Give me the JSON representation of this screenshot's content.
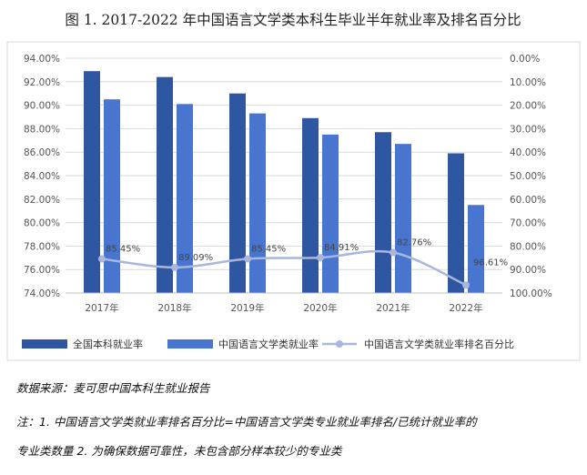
{
  "chart_data": {
    "type": "bar",
    "title": "图 1. 2017-2022 年中国语言文学类本科生毕业半年就业率及排名百分比",
    "categories": [
      "2017年",
      "2018年",
      "2019年",
      "2020年",
      "2021年",
      "2022年"
    ],
    "series": [
      {
        "name": "全国本科就业率",
        "type": "bar",
        "axis": "left",
        "color": "#2f56a0",
        "values": [
          92.9,
          92.4,
          91.0,
          88.9,
          87.7,
          85.9
        ]
      },
      {
        "name": "中国语言文学类就业率",
        "type": "bar",
        "axis": "left",
        "color": "#4775cf",
        "values": [
          90.5,
          90.1,
          89.3,
          87.5,
          86.7,
          81.5
        ]
      },
      {
        "name": "中国语言文学类就业率排名百分比",
        "type": "line",
        "axis": "right",
        "color": "#a9b6dd",
        "values": [
          85.45,
          89.09,
          85.45,
          84.91,
          82.76,
          96.61
        ],
        "labels": [
          "85.45%",
          "89.09%",
          "85.45%",
          "84.91%",
          "82.76%",
          "96.61%"
        ]
      }
    ],
    "left_axis": {
      "min": 74,
      "max": 94,
      "ticks": [
        "74.00%",
        "76.00%",
        "78.00%",
        "80.00%",
        "82.00%",
        "84.00%",
        "86.00%",
        "88.00%",
        "90.00%",
        "92.00%",
        "94.00%"
      ]
    },
    "right_axis": {
      "min": 0,
      "max": 100,
      "reversed": true,
      "ticks": [
        "0.00%",
        "10.00%",
        "20.00%",
        "30.00%",
        "40.00%",
        "50.00%",
        "60.00%",
        "70.00%",
        "80.00%",
        "90.00%",
        "100.00%"
      ]
    },
    "grid": true,
    "legend": "bottom"
  },
  "notes": {
    "source": "数据来源：麦可思中国本科生就业报告",
    "note_line1": "注：1. 中国语言文学类就业率排名百分比=中国语言文学类专业就业率排名/已统计就业率的",
    "note_line2": "专业类数量 2. 为确保数据可靠性，未包含部分样本较少的专业类"
  }
}
